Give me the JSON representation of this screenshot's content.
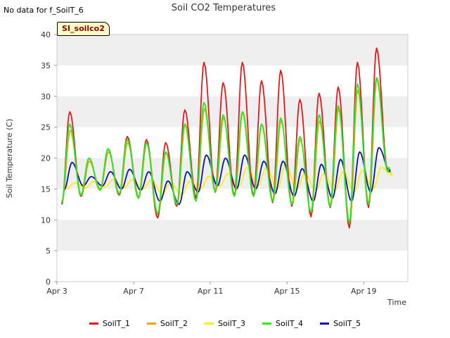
{
  "note": "No data for f_SoilT_6",
  "badge": "SI_soilco2",
  "colors": {
    "SoilT_1": "#e31a1c",
    "SoilT_2": "#f0a30a",
    "SoilT_3": "#ffee00",
    "SoilT_4": "#22ee22",
    "SoilT_5": "#1010b0"
  },
  "chart_data": {
    "type": "line",
    "title": "Soil CO2 Temperatures",
    "xlabel": "Time",
    "ylabel": "Soil Temperature (C)",
    "xlim": [
      3.0,
      21.3
    ],
    "ylim": [
      0,
      40
    ],
    "xticks": [
      {
        "x": 3,
        "label": "Apr 3"
      },
      {
        "x": 7,
        "label": "Apr 7"
      },
      {
        "x": 11,
        "label": "Apr 11"
      },
      {
        "x": 15,
        "label": "Apr 15"
      },
      {
        "x": 19,
        "label": "Apr 19"
      }
    ],
    "yticks": [
      0,
      5,
      10,
      15,
      20,
      25,
      30,
      35,
      40
    ],
    "grid": "horizontal bands",
    "legend_position": "bottom",
    "days": [
      3.25,
      4.25,
      5.25,
      6.25,
      7.25,
      8.25,
      9.25,
      10.25,
      11.25,
      12.25,
      13.25,
      14.25,
      15.25,
      16.25,
      17.25,
      18.25,
      19.25,
      20.25
    ],
    "series": [
      {
        "name": "SoilT_1",
        "min": [
          12.5,
          13.8,
          14.8,
          14.0,
          13.5,
          10.3,
          12.2,
          13.5,
          14.5,
          13.8,
          13.8,
          12.8,
          12.2,
          10.5,
          12.0,
          8.7,
          12.0,
          17.8
        ],
        "max": [
          27.5,
          20.0,
          21.5,
          23.5,
          23.0,
          22.5,
          27.8,
          35.5,
          32.2,
          35.5,
          32.5,
          34.2,
          29.5,
          30.5,
          31.5,
          35.5,
          37.8,
          18.5
        ]
      },
      {
        "name": "SoilT_2",
        "min": [
          13.0,
          14.0,
          15.0,
          14.2,
          13.7,
          10.8,
          12.5,
          13.6,
          14.5,
          14.0,
          14.0,
          13.0,
          12.5,
          11.0,
          12.2,
          9.5,
          12.5,
          17.8
        ],
        "max": [
          24.5,
          19.5,
          21.0,
          22.5,
          22.5,
          21.0,
          25.5,
          28.0,
          26.5,
          27.5,
          25.5,
          26.0,
          23.0,
          26.0,
          28.0,
          31.0,
          33.0,
          18.5
        ]
      },
      {
        "name": "SoilT_3",
        "min": [
          15.0,
          15.2,
          15.3,
          15.2,
          15.0,
          14.2,
          14.0,
          15.0,
          15.5,
          15.5,
          15.5,
          15.0,
          15.0,
          14.8,
          14.8,
          14.5,
          15.0,
          17.2
        ],
        "max": [
          16.0,
          16.2,
          16.5,
          16.5,
          16.5,
          16.0,
          16.2,
          17.0,
          17.5,
          18.5,
          18.5,
          19.0,
          17.5,
          17.5,
          17.8,
          18.0,
          18.5,
          18.0
        ]
      },
      {
        "name": "SoilT_4",
        "min": [
          12.8,
          14.0,
          14.8,
          14.2,
          13.5,
          11.0,
          12.5,
          13.0,
          14.6,
          13.8,
          13.8,
          13.0,
          12.5,
          11.2,
          12.2,
          9.5,
          12.5,
          17.8
        ],
        "max": [
          25.5,
          20.0,
          21.5,
          23.0,
          22.5,
          21.0,
          25.5,
          29.0,
          27.0,
          27.5,
          25.5,
          26.5,
          23.5,
          27.0,
          28.5,
          32.0,
          33.0,
          18.5
        ]
      },
      {
        "name": "SoilT_5",
        "min": [
          14.8,
          15.5,
          15.5,
          15.0,
          14.8,
          13.0,
          12.5,
          14.5,
          15.5,
          15.0,
          15.0,
          14.2,
          13.8,
          13.0,
          13.5,
          13.0,
          14.5,
          17.8
        ],
        "max": [
          19.3,
          17.0,
          17.8,
          18.2,
          17.8,
          16.3,
          17.8,
          20.5,
          20.0,
          20.5,
          19.5,
          19.5,
          18.3,
          19.0,
          19.8,
          21.0,
          21.7,
          18.2
        ]
      }
    ]
  }
}
